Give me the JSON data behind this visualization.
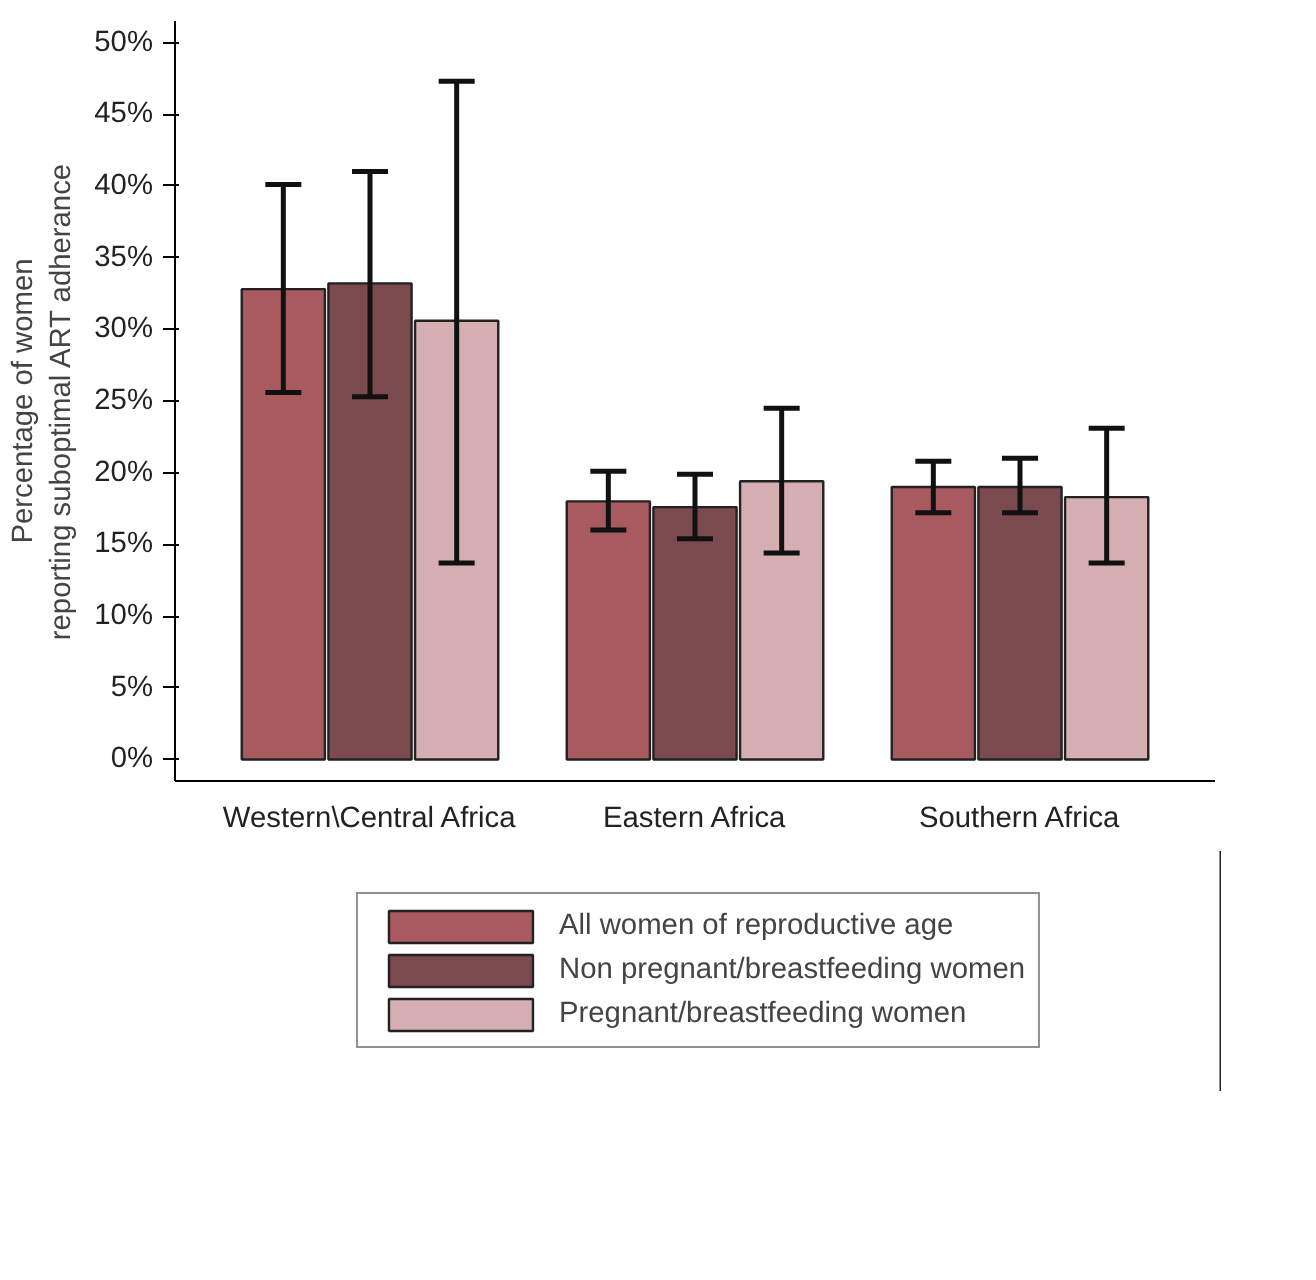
{
  "chart_data": {
    "type": "bar",
    "ylabel": "Percentage of women\nreporting suboptimal ART adherance",
    "categories": [
      "Western\\Central Africa",
      "Eastern Africa",
      "Southern Africa"
    ],
    "series": [
      {
        "name": "All women of reproductive age",
        "color": "#a85a5f",
        "values": [
          32.8,
          18.0,
          19.0
        ],
        "errors": [
          [
            25.6,
            40.1
          ],
          [
            16.0,
            20.1
          ],
          [
            17.2,
            20.8
          ]
        ]
      },
      {
        "name": "Non pregnant/breastfeeding women",
        "color": "#7b4a4e",
        "values": [
          33.2,
          17.6,
          19.0
        ],
        "errors": [
          [
            25.3,
            41.0
          ],
          [
            15.4,
            19.9
          ],
          [
            17.2,
            21.0
          ]
        ]
      },
      {
        "name": "Pregnant/breastfeeding women",
        "color": "#d4aeb0",
        "values": [
          30.6,
          19.4,
          18.3
        ],
        "errors": [
          [
            13.7,
            47.3
          ],
          [
            14.4,
            24.5
          ],
          [
            13.7,
            23.1
          ]
        ]
      }
    ],
    "ylim": [
      -1.5,
      51.5
    ],
    "yticks": [
      {
        "value": 0,
        "label": "0%"
      },
      {
        "value": 5,
        "label": "5%"
      },
      {
        "value": 10,
        "label": "10%"
      },
      {
        "value": 15,
        "label": "15%"
      },
      {
        "value": 20,
        "label": "20%"
      },
      {
        "value": 25,
        "label": "25%"
      },
      {
        "value": 30,
        "label": "30%"
      },
      {
        "value": 35,
        "label": "35%"
      },
      {
        "value": 40,
        "label": "40%"
      },
      {
        "value": 45,
        "label": "45%"
      },
      {
        "value": 50,
        "label": "50%"
      }
    ],
    "grid": false,
    "legend": "bottom"
  }
}
